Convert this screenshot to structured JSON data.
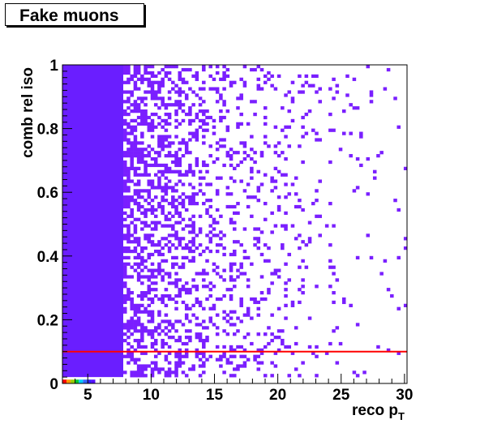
{
  "chart_data": {
    "type": "heatmap",
    "title": "Fake muons",
    "xlabel": "reco p",
    "xlabel_sub": "T",
    "ylabel": "comb rel iso",
    "xlim": [
      3,
      30.2
    ],
    "ylim": [
      0,
      1
    ],
    "x_ticks": [
      "5",
      "10",
      "15",
      "20",
      "25",
      "30"
    ],
    "x_tick_values": [
      5,
      10,
      15,
      20,
      25,
      30
    ],
    "y_ticks": [
      "0",
      "0.2",
      "0.4",
      "0.6",
      "0.8",
      "1"
    ],
    "y_tick_values": [
      0,
      0.2,
      0.4,
      0.6,
      0.8,
      1
    ],
    "bin_width_x": 0.27,
    "bin_width_y": 0.01,
    "band": {
      "x_range": [
        3,
        7.8
      ],
      "y_range": [
        0.02,
        1.0
      ],
      "color": "#6a1eff"
    },
    "density_falloff_x": [
      7.8,
      30
    ],
    "cell_color": "#7a1fff",
    "zero_row_colors": [
      "#ff0000",
      "#ff9900",
      "#99cc00",
      "#00cc33",
      "#00ccff",
      "#3366ff",
      "#3322ff",
      "#5511ff"
    ],
    "cut_line": {
      "y": 0.1,
      "color": "#ff0000"
    },
    "colors": {
      "axis": "#000000",
      "background": "#ffffff"
    }
  }
}
